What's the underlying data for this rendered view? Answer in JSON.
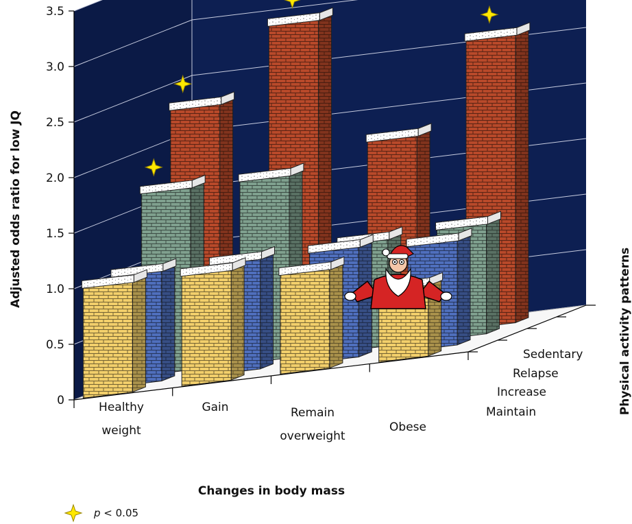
{
  "chart_data": {
    "type": "bar",
    "style": "3d-grouped",
    "xlabel": "Changes in body mass",
    "ylabel": "Adjusted odds ratio for low JQ",
    "zlabel": "Physical activity patterns",
    "ylim": [
      0,
      3.5
    ],
    "yticks": [
      "0",
      "0.5",
      "1.0",
      "1.5",
      "2.0",
      "2.5",
      "3.0",
      "3.5"
    ],
    "categories": [
      {
        "lines": [
          "Healthy",
          "weight"
        ]
      },
      {
        "lines": [
          "Gain"
        ]
      },
      {
        "lines": [
          "Remain",
          "overweight"
        ]
      },
      {
        "lines": [
          "Obese"
        ]
      }
    ],
    "series": [
      {
        "name": "Maintain",
        "color": "#f2cf6b",
        "values": [
          1.0,
          1.0,
          0.9,
          0.65
        ],
        "significant": [
          false,
          false,
          false,
          false
        ]
      },
      {
        "name": "Increase",
        "color": "#4f6fbd",
        "values": [
          1.0,
          1.0,
          1.0,
          0.95
        ],
        "significant": [
          false,
          false,
          false,
          false
        ]
      },
      {
        "name": "Relapse",
        "color": "#7fa08e",
        "values": [
          1.65,
          1.65,
          0.97,
          1.0
        ],
        "significant": [
          true,
          false,
          false,
          false
        ]
      },
      {
        "name": "Sedentary",
        "color": "#b8492a",
        "values": [
          2.3,
          2.95,
          1.8,
          2.6
        ],
        "significant": [
          true,
          true,
          false,
          true
        ]
      }
    ],
    "legend_note": {
      "p_symbol": "p",
      "text": " < 0.05"
    },
    "colors": {
      "wall": "#0d1f52",
      "grid": "#c8cde0",
      "star": "#ffe800"
    }
  }
}
